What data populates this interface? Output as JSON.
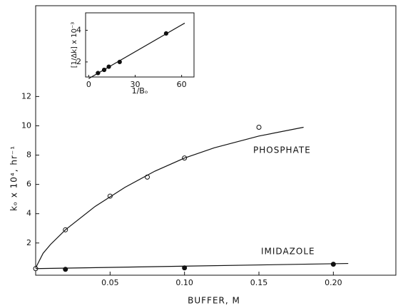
{
  "chart_data": [
    {
      "type": "scatter",
      "xlabel": "BUFFER, M",
      "ylabel": "kₒ x 10⁴, hr⁻¹",
      "annotations": [
        "PHOSPHATE",
        "IMIDAZOLE"
      ],
      "xlim": [
        0,
        0.242
      ],
      "ylim": [
        -0.2,
        18.2
      ],
      "xticks": [
        0.05,
        {
          "value": 0.1,
          "label": "0.10"
        },
        0.15,
        {
          "value": 0.2,
          "label": "0.20"
        }
      ],
      "yticks": [
        2,
        4,
        6,
        8,
        10,
        12
      ],
      "series": [
        {
          "style": "open",
          "x": [
            0,
            0.02,
            0.05,
            0.075,
            0.1,
            0.15
          ],
          "values": [
            0.25,
            2.9,
            5.2,
            6.5,
            7.8,
            9.9
          ]
        },
        {
          "style": "line",
          "x": [
            0,
            0.005,
            0.01,
            0.02,
            0.04,
            0.06,
            0.08,
            0.1,
            0.12,
            0.15,
            0.18
          ],
          "values": [
            0.3,
            1.3,
            1.9,
            2.9,
            4.5,
            5.8,
            6.9,
            7.8,
            8.5,
            9.3,
            9.9
          ]
        },
        {
          "style": "filled",
          "x": [
            0.02,
            0.1,
            0.2
          ],
          "values": [
            0.2,
            0.3,
            0.55
          ]
        },
        {
          "style": "line",
          "x": [
            0,
            0.21
          ],
          "values": [
            0.25,
            0.6
          ]
        }
      ]
    },
    {
      "type": "scatter",
      "xlabel": "1/Bₒ",
      "ylabel": "[1/Δk] x 10⁻³",
      "xlim": [
        -2,
        68
      ],
      "ylim": [
        1.05,
        5.1
      ],
      "xticks": [
        0,
        30,
        60
      ],
      "yticks": [
        2,
        4
      ],
      "series": [
        {
          "style": "filled",
          "x": [
            6,
            10,
            13,
            20,
            50
          ],
          "values": [
            1.3,
            1.5,
            1.7,
            2.0,
            3.8
          ]
        },
        {
          "style": "line",
          "x": [
            0,
            62
          ],
          "values": [
            0.95,
            4.45
          ]
        }
      ]
    }
  ]
}
